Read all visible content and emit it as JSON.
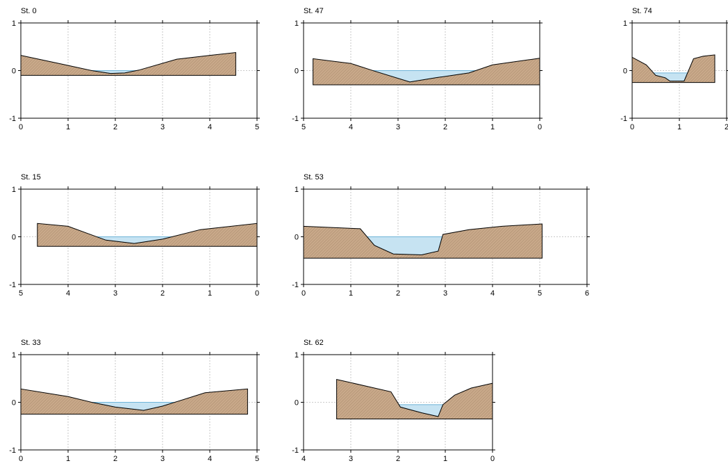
{
  "colors": {
    "ground_fill": "#c9a98a",
    "ground_hatch": "#a88a6c",
    "water_fill": "#c6e3f2",
    "water_stroke": "#6fb4d8",
    "outline": "#000000",
    "grid": "#b9b9b9"
  },
  "chart_data": [
    {
      "type": "area",
      "title": "St. 0",
      "xlabel": "",
      "ylabel": "",
      "xlim": [
        0,
        5
      ],
      "ylim": [
        -1,
        1
      ],
      "x_ticks": [
        0,
        1,
        2,
        3,
        4,
        5
      ],
      "y_ticks": [
        -1,
        0,
        1
      ],
      "x_reversed": false,
      "grid": true,
      "base": -0.1,
      "ground": {
        "x": [
          0,
          0.9,
          1.5,
          1.9,
          2.2,
          2.5,
          3.3,
          4.0,
          4.55
        ],
        "y": [
          0.32,
          0.13,
          0.0,
          -0.06,
          -0.05,
          0.01,
          0.24,
          0.32,
          0.38
        ]
      },
      "water_level": 0.0
    },
    {
      "type": "area",
      "title": "St. 47",
      "xlabel": "",
      "ylabel": "",
      "xlim": [
        5,
        0
      ],
      "ylim": [
        -1,
        1
      ],
      "x_ticks": [
        5,
        4,
        3,
        2,
        1,
        0
      ],
      "y_ticks": [
        -1,
        0,
        1
      ],
      "x_reversed": true,
      "grid": true,
      "base": -0.3,
      "ground": {
        "x": [
          4.8,
          4.0,
          3.5,
          2.75,
          2.2,
          1.5,
          1.0,
          0.0
        ],
        "y": [
          0.25,
          0.15,
          -0.01,
          -0.24,
          -0.15,
          -0.05,
          0.12,
          0.26
        ]
      },
      "water_level": 0.0
    },
    {
      "type": "area",
      "title": "St. 74",
      "xlabel": "",
      "ylabel": "",
      "xlim": [
        0,
        2
      ],
      "ylim": [
        -1,
        1
      ],
      "x_ticks": [
        0,
        1,
        2
      ],
      "y_ticks": [
        -1,
        0,
        1
      ],
      "x_reversed": false,
      "grid": true,
      "base": -0.25,
      "ground": {
        "x": [
          0,
          0.3,
          0.5,
          0.7,
          0.8,
          1.1,
          1.3,
          1.5,
          1.75
        ],
        "y": [
          0.28,
          0.12,
          -0.1,
          -0.15,
          -0.22,
          -0.22,
          0.25,
          0.3,
          0.33
        ]
      },
      "water_level": -0.05
    },
    {
      "type": "area",
      "title": "St. 15",
      "xlabel": "",
      "ylabel": "",
      "xlim": [
        5,
        0
      ],
      "ylim": [
        -1,
        1
      ],
      "x_ticks": [
        5,
        4,
        3,
        2,
        1,
        0
      ],
      "y_ticks": [
        -1,
        0,
        1
      ],
      "x_reversed": true,
      "grid": true,
      "base": -0.2,
      "ground": {
        "x": [
          4.65,
          4.0,
          3.2,
          2.6,
          2.0,
          1.2,
          0.0
        ],
        "y": [
          0.28,
          0.22,
          -0.07,
          -0.14,
          -0.05,
          0.15,
          0.28
        ]
      },
      "water_level": 0.0
    },
    {
      "type": "area",
      "title": "St. 53",
      "xlabel": "",
      "ylabel": "",
      "xlim": [
        0,
        6
      ],
      "ylim": [
        -1,
        1
      ],
      "x_ticks": [
        0,
        1,
        2,
        3,
        4,
        5,
        6
      ],
      "y_ticks": [
        -1,
        0,
        1
      ],
      "x_reversed": false,
      "grid": true,
      "base": -0.45,
      "ground": {
        "x": [
          0,
          1.2,
          1.5,
          1.9,
          2.5,
          2.85,
          2.95,
          3.5,
          4.2,
          5.05
        ],
        "y": [
          0.22,
          0.17,
          -0.18,
          -0.36,
          -0.38,
          -0.3,
          0.05,
          0.15,
          0.22,
          0.27
        ]
      },
      "water_level": 0.0
    },
    {
      "type": "area",
      "title": "St. 33",
      "xlabel": "",
      "ylabel": "",
      "xlim": [
        0,
        5
      ],
      "ylim": [
        -1,
        1
      ],
      "x_ticks": [
        0,
        1,
        2,
        3,
        4,
        5
      ],
      "y_ticks": [
        -1,
        0,
        1
      ],
      "x_reversed": false,
      "grid": true,
      "base": -0.25,
      "ground": {
        "x": [
          0,
          1.0,
          1.5,
          2.0,
          2.6,
          3.0,
          3.9,
          4.8
        ],
        "y": [
          0.28,
          0.12,
          0.0,
          -0.1,
          -0.17,
          -0.08,
          0.2,
          0.28
        ]
      },
      "water_level": 0.0
    },
    {
      "type": "area",
      "title": "St. 62",
      "xlabel": "",
      "ylabel": "",
      "xlim": [
        4,
        0
      ],
      "ylim": [
        -1,
        1
      ],
      "x_ticks": [
        4,
        3,
        2,
        1,
        0
      ],
      "y_ticks": [
        -1,
        0,
        1
      ],
      "x_reversed": true,
      "grid": true,
      "base": -0.35,
      "ground": {
        "x": [
          3.3,
          2.15,
          1.95,
          1.5,
          1.15,
          1.05,
          0.8,
          0.45,
          0.0
        ],
        "y": [
          0.48,
          0.22,
          -0.1,
          -0.22,
          -0.3,
          -0.05,
          0.15,
          0.3,
          0.4
        ]
      },
      "water_level": -0.05
    }
  ]
}
